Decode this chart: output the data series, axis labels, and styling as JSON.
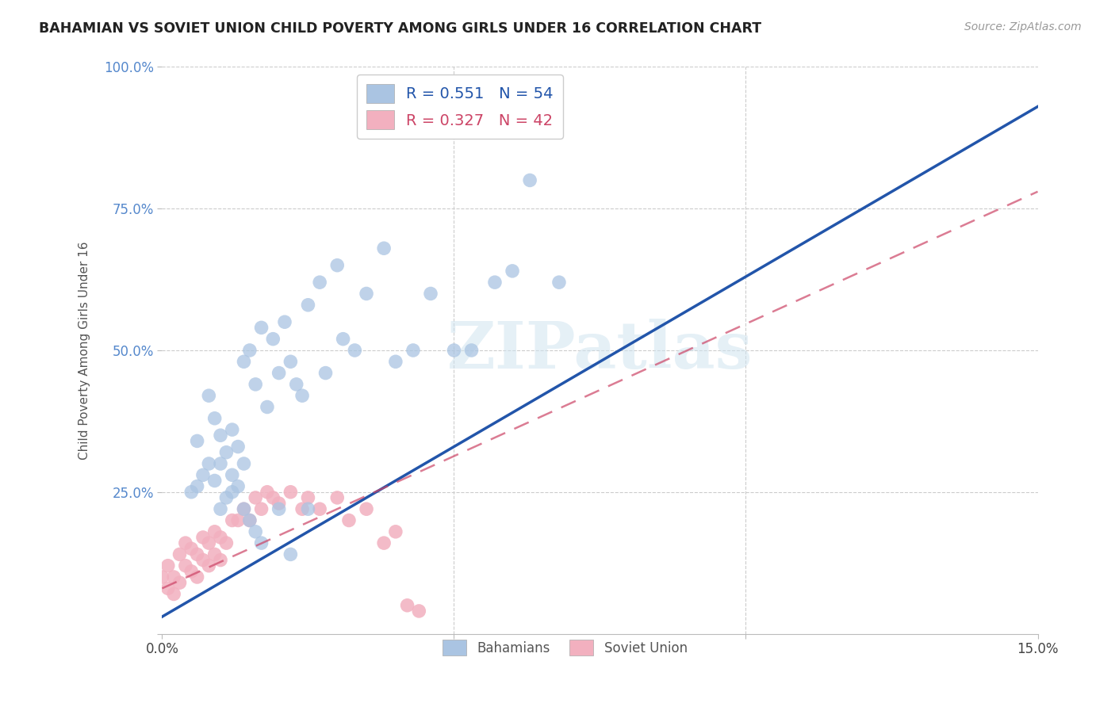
{
  "title": "BAHAMIAN VS SOVIET UNION CHILD POVERTY AMONG GIRLS UNDER 16 CORRELATION CHART",
  "source": "Source: ZipAtlas.com",
  "ylabel": "Child Poverty Among Girls Under 16",
  "xlim": [
    0,
    0.15
  ],
  "ylim": [
    0,
    1.0
  ],
  "bahamians_R": 0.551,
  "bahamians_N": 54,
  "soviet_R": 0.327,
  "soviet_N": 42,
  "blue_dot_color": "#aac4e2",
  "pink_dot_color": "#f2b0bf",
  "blue_line_color": "#2255aa",
  "pink_line_color": "#cc4466",
  "watermark_text": "ZIPatlas",
  "legend_blue": "R = 0.551   N = 54",
  "legend_pink": "R = 0.327   N = 42",
  "bahamians_x": [
    0.006,
    0.008,
    0.009,
    0.01,
    0.01,
    0.011,
    0.012,
    0.012,
    0.013,
    0.014,
    0.014,
    0.015,
    0.016,
    0.017,
    0.018,
    0.019,
    0.02,
    0.021,
    0.022,
    0.023,
    0.024,
    0.025,
    0.027,
    0.028,
    0.03,
    0.031,
    0.033,
    0.035,
    0.038,
    0.04,
    0.043,
    0.046,
    0.05,
    0.053,
    0.057,
    0.06,
    0.063,
    0.068,
    0.005,
    0.006,
    0.007,
    0.008,
    0.009,
    0.01,
    0.011,
    0.012,
    0.013,
    0.014,
    0.015,
    0.016,
    0.017,
    0.02,
    0.022,
    0.025
  ],
  "bahamians_y": [
    0.34,
    0.42,
    0.38,
    0.3,
    0.35,
    0.32,
    0.28,
    0.36,
    0.33,
    0.3,
    0.48,
    0.5,
    0.44,
    0.54,
    0.4,
    0.52,
    0.46,
    0.55,
    0.48,
    0.44,
    0.42,
    0.58,
    0.62,
    0.46,
    0.65,
    0.52,
    0.5,
    0.6,
    0.68,
    0.48,
    0.5,
    0.6,
    0.5,
    0.5,
    0.62,
    0.64,
    0.8,
    0.62,
    0.25,
    0.26,
    0.28,
    0.3,
    0.27,
    0.22,
    0.24,
    0.25,
    0.26,
    0.22,
    0.2,
    0.18,
    0.16,
    0.22,
    0.14,
    0.22
  ],
  "soviet_x": [
    0.0,
    0.001,
    0.001,
    0.002,
    0.002,
    0.003,
    0.003,
    0.004,
    0.004,
    0.005,
    0.005,
    0.006,
    0.006,
    0.007,
    0.007,
    0.008,
    0.008,
    0.009,
    0.009,
    0.01,
    0.01,
    0.011,
    0.012,
    0.013,
    0.014,
    0.015,
    0.016,
    0.017,
    0.018,
    0.019,
    0.02,
    0.022,
    0.024,
    0.025,
    0.027,
    0.03,
    0.032,
    0.035,
    0.038,
    0.04,
    0.042,
    0.044
  ],
  "soviet_y": [
    0.1,
    0.08,
    0.12,
    0.07,
    0.1,
    0.09,
    0.14,
    0.12,
    0.16,
    0.11,
    0.15,
    0.1,
    0.14,
    0.13,
    0.17,
    0.12,
    0.16,
    0.14,
    0.18,
    0.13,
    0.17,
    0.16,
    0.2,
    0.2,
    0.22,
    0.2,
    0.24,
    0.22,
    0.25,
    0.24,
    0.23,
    0.25,
    0.22,
    0.24,
    0.22,
    0.24,
    0.2,
    0.22,
    0.16,
    0.18,
    0.05,
    0.04
  ],
  "blue_line_x0": 0.0,
  "blue_line_x1": 0.15,
  "blue_line_y0": 0.03,
  "blue_line_y1": 0.93,
  "pink_line_x0": 0.0,
  "pink_line_x1": 0.15,
  "pink_line_y0": 0.08,
  "pink_line_y1": 0.78
}
